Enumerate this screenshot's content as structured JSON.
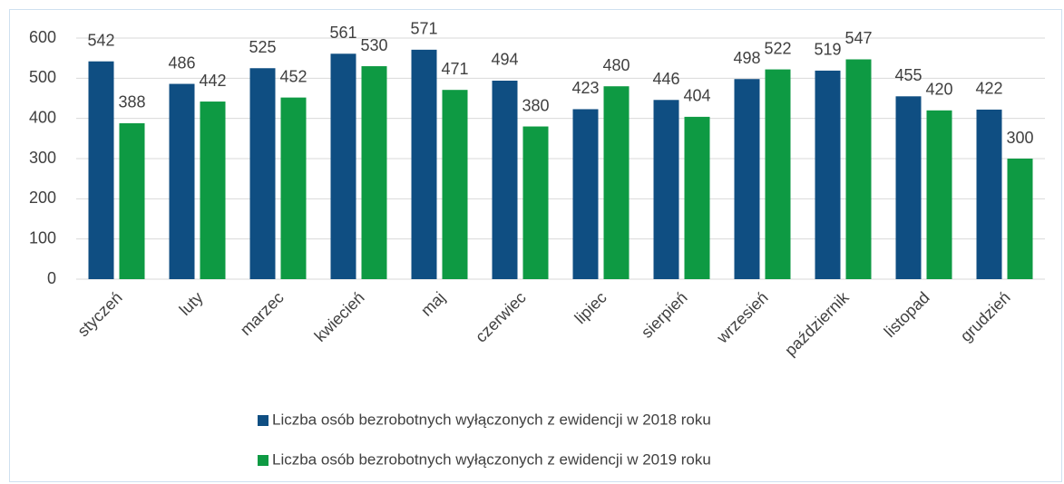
{
  "chart_data": {
    "type": "bar",
    "categories": [
      "styczeń",
      "luty",
      "marzec",
      "kwiecień",
      "maj",
      "czerwiec",
      "lipiec",
      "sierpień",
      "wrzesień",
      "październik",
      "listopad",
      "grudzień"
    ],
    "series": [
      {
        "name": "Liczba osób bezrobotnych wyłączonych z ewidencji w 2018 roku",
        "color": "#0f4e82",
        "values": [
          542,
          486,
          525,
          561,
          571,
          494,
          423,
          446,
          498,
          519,
          455,
          422
        ]
      },
      {
        "name": "Liczba osób bezrobotnych wyłączonych z ewidencji w 2019 roku",
        "color": "#0e9a43",
        "values": [
          388,
          442,
          452,
          530,
          471,
          380,
          480,
          404,
          522,
          547,
          420,
          300
        ]
      }
    ],
    "ylim": [
      0,
      600
    ],
    "yticks": [
      0,
      100,
      200,
      300,
      400,
      500,
      600
    ],
    "grid": true,
    "legend": "bottom"
  }
}
